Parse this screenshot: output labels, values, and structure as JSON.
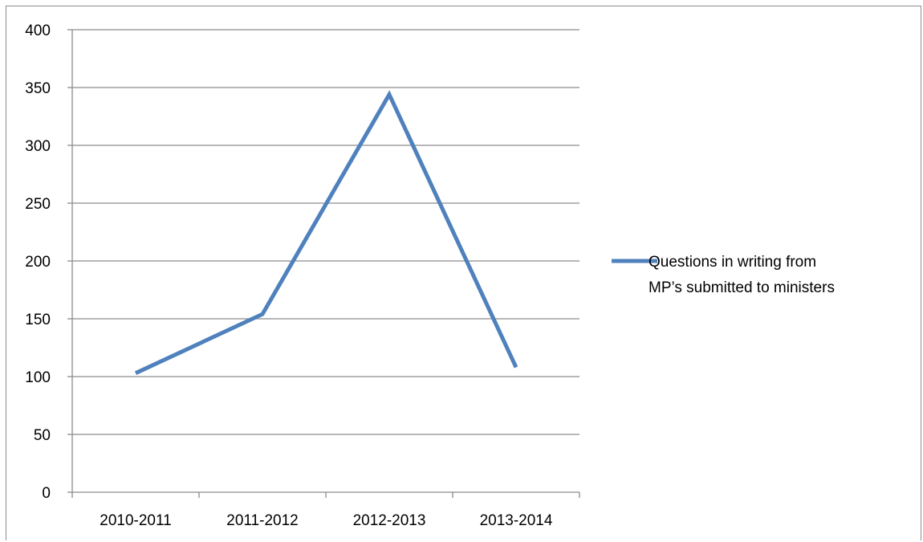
{
  "chart_data": {
    "type": "line",
    "title": "",
    "xlabel": "",
    "ylabel": "",
    "categories": [
      "2010-2011",
      "2011-2012",
      "2012-2013",
      "2013-2014"
    ],
    "series": [
      {
        "name": "Questions in writing from MP’s submitted to ministers",
        "name_lines": [
          "Questions in writing from",
          "MP’s submitted to ministers"
        ],
        "values": [
          103,
          154,
          344,
          108
        ],
        "color": "#4f81bd"
      }
    ],
    "ylim": [
      0,
      400
    ],
    "yticks": [
      0,
      50,
      100,
      150,
      200,
      250,
      300,
      350,
      400
    ],
    "grid": true,
    "legend_position": "right"
  }
}
